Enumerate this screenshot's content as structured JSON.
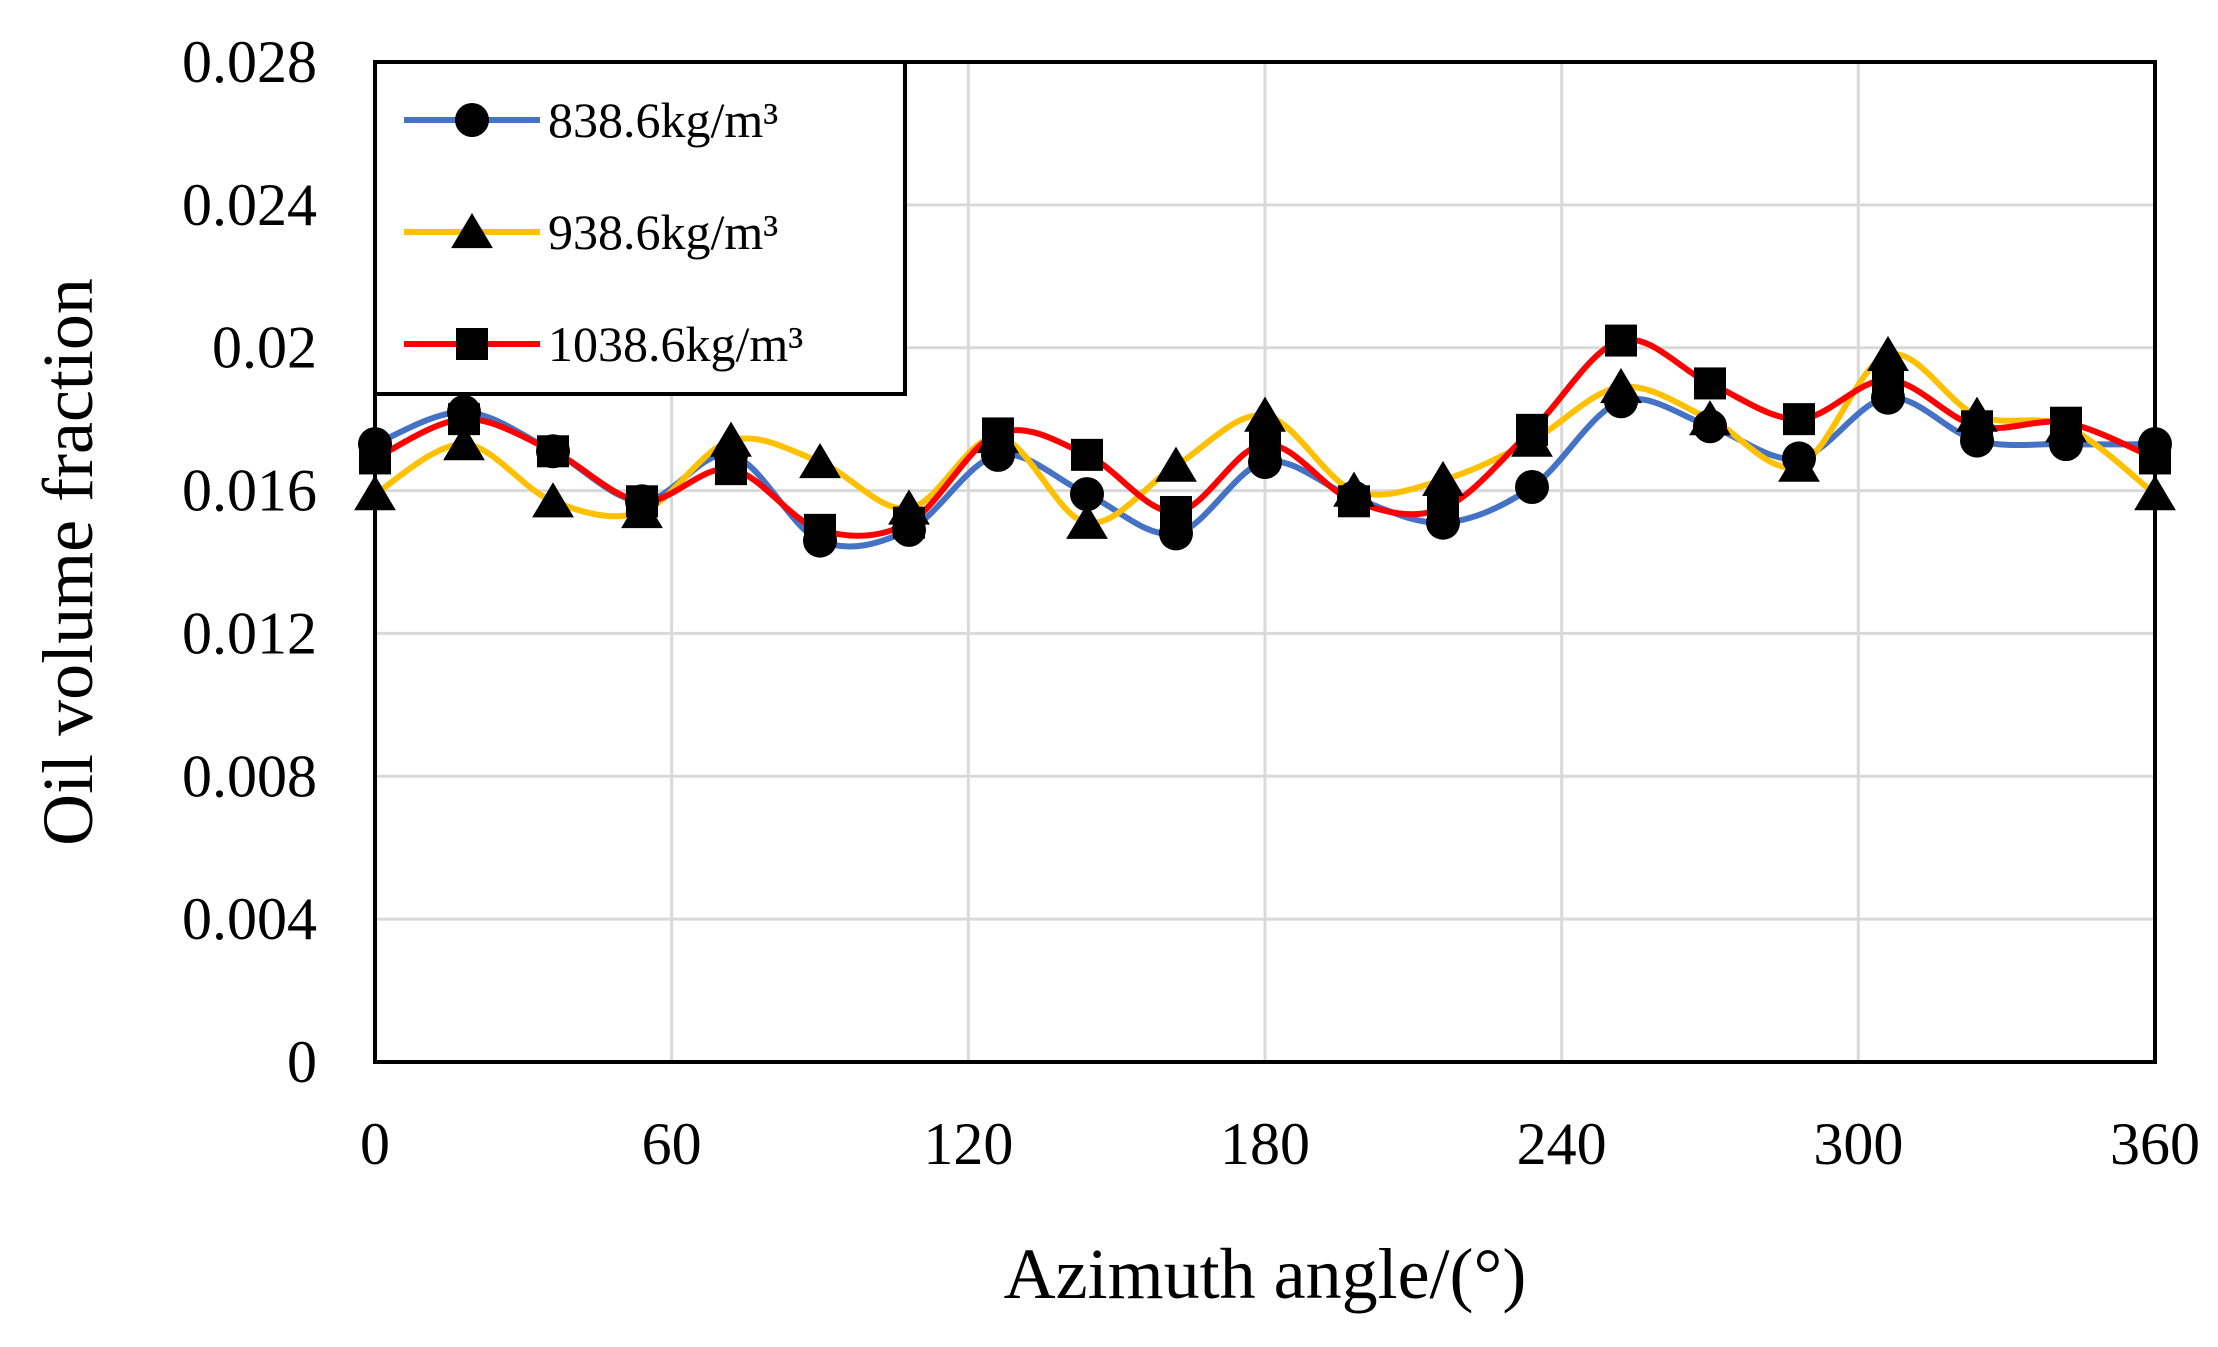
{
  "chart_data": {
    "type": "line",
    "title": "",
    "xlabel": "Azimuth angle/(°)",
    "ylabel": "Oil volume fraction",
    "xlim": [
      0,
      360
    ],
    "ylim": [
      0,
      0.028
    ],
    "grid": true,
    "legend_position": "top-left",
    "x_ticks": [
      0,
      60,
      120,
      180,
      240,
      300,
      360
    ],
    "x_tick_labels": [
      "0",
      "60",
      "120",
      "180",
      "240",
      "300",
      "360"
    ],
    "y_ticks": [
      0,
      0.004,
      0.008,
      0.012,
      0.016,
      0.02,
      0.024,
      0.028
    ],
    "y_tick_labels": [
      "0",
      "0.004",
      "0.008",
      "0.012",
      "0.016",
      "0.02",
      "0.024",
      "0.028"
    ],
    "x": [
      0,
      18,
      36,
      54,
      72,
      90,
      108,
      126,
      144,
      162,
      180,
      198,
      216,
      234,
      252,
      270,
      288,
      306,
      324,
      342,
      360
    ],
    "series": [
      {
        "name": "838.6kg/m³",
        "color": "#4472C4",
        "marker": "circle",
        "values": [
          0.0173,
          0.0182,
          0.0171,
          0.0157,
          0.017,
          0.0146,
          0.0149,
          0.017,
          0.0159,
          0.0148,
          0.0168,
          0.0158,
          0.0151,
          0.0161,
          0.0185,
          0.0178,
          0.0169,
          0.0186,
          0.0174,
          0.0173,
          0.0173
        ]
      },
      {
        "name": "938.6kg/m³",
        "color": "#FFC000",
        "marker": "triangle",
        "values": [
          0.0159,
          0.0173,
          0.0157,
          0.0154,
          0.0174,
          0.0168,
          0.0155,
          0.0175,
          0.0151,
          0.0167,
          0.0181,
          0.016,
          0.0163,
          0.0174,
          0.0189,
          0.018,
          0.0167,
          0.0198,
          0.0181,
          0.0178,
          0.0159
        ]
      },
      {
        "name": "1038.6kg/m³",
        "color": "#FF0000",
        "marker": "square",
        "values": [
          0.0169,
          0.018,
          0.0171,
          0.0157,
          0.0166,
          0.0149,
          0.0151,
          0.0176,
          0.017,
          0.0154,
          0.0173,
          0.0157,
          0.0155,
          0.0177,
          0.0202,
          0.019,
          0.018,
          0.0191,
          0.0178,
          0.0179,
          0.0169
        ]
      }
    ]
  }
}
